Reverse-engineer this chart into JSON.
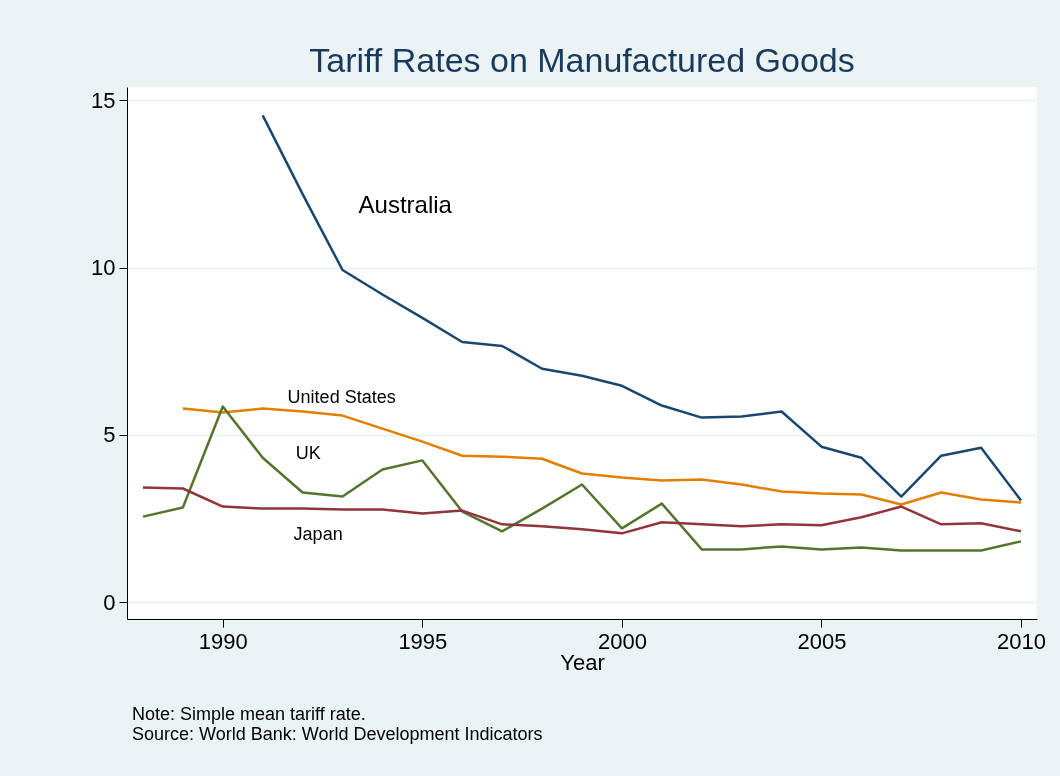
{
  "chart_data": {
    "type": "line",
    "title": "Tariff Rates on Manufactured Goods",
    "xlabel": "Year",
    "x": [
      1988,
      1989,
      1990,
      1991,
      1992,
      1993,
      1994,
      1995,
      1996,
      1997,
      1998,
      1999,
      2000,
      2001,
      2002,
      2003,
      2004,
      2005,
      2006,
      2007,
      2008,
      2009,
      2010
    ],
    "series": [
      {
        "name": "Australia",
        "color": "#1a476f",
        "values": [
          null,
          null,
          null,
          14.55,
          12.2,
          9.93,
          9.2,
          8.5,
          7.78,
          7.66,
          6.98,
          6.77,
          6.47,
          5.88,
          5.52,
          5.55,
          5.7,
          4.65,
          4.32,
          3.16,
          4.38,
          4.62,
          3.04
        ]
      },
      {
        "name": "United States",
        "color": "#e37e00",
        "values": [
          null,
          5.79,
          5.67,
          5.79,
          5.7,
          5.58,
          5.19,
          4.8,
          4.38,
          4.35,
          4.29,
          3.85,
          3.73,
          3.64,
          3.67,
          3.52,
          3.31,
          3.25,
          3.22,
          2.92,
          3.28,
          3.07,
          2.98
        ]
      },
      {
        "name": "UK",
        "color": "#55752f",
        "values": [
          2.56,
          2.83,
          5.85,
          4.32,
          3.28,
          3.16,
          3.97,
          4.24,
          2.71,
          2.12,
          2.8,
          3.52,
          2.21,
          2.95,
          1.58,
          1.58,
          1.67,
          1.58,
          1.64,
          1.55,
          1.55,
          1.55,
          1.82
        ]
      },
      {
        "name": "Japan",
        "color": "#90353b",
        "values": [
          3.43,
          3.4,
          2.86,
          2.8,
          2.8,
          2.77,
          2.77,
          2.65,
          2.74,
          2.33,
          2.27,
          2.18,
          2.06,
          2.39,
          2.33,
          2.27,
          2.33,
          2.3,
          2.54,
          2.86,
          2.33,
          2.36,
          2.12
        ]
      }
    ],
    "xlim": [
      1987.6,
      2010.4
    ],
    "xticks": [
      1990,
      1995,
      2000,
      2005,
      2010
    ],
    "ylim": [
      -0.5,
      15.4
    ],
    "yticks": [
      0,
      5,
      10,
      15
    ],
    "grid": "y",
    "annotations": [
      "Note: Simple mean tariff rate.",
      "Source: World Bank: World Development Indicators"
    ]
  }
}
